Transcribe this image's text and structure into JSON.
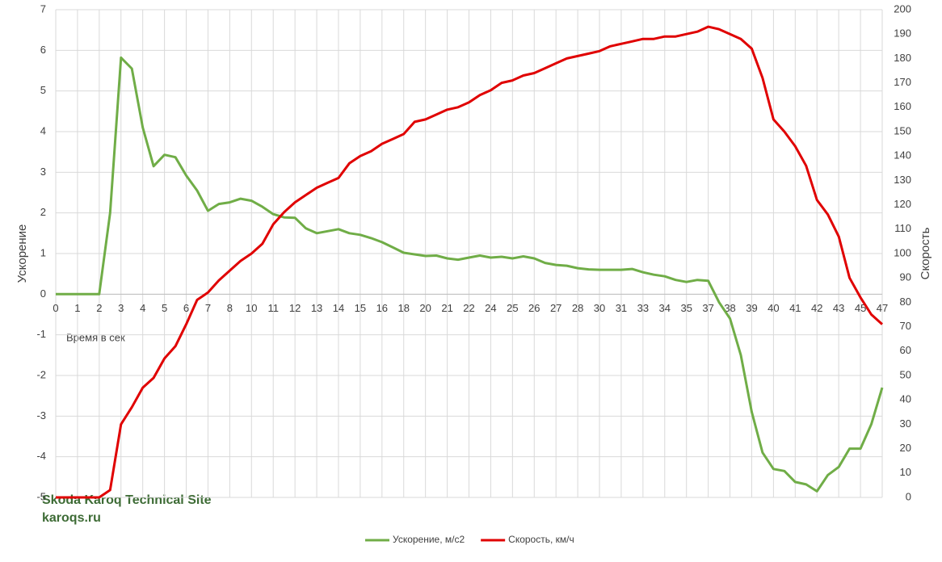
{
  "chart_data": {
    "type": "line",
    "xlabel": "Время в сек",
    "ylabel": "Ускорение",
    "y2label": "Скорость",
    "watermark": [
      "Skoda Karoq Technical Site",
      "karoqs.ru"
    ],
    "categories": [
      "0",
      null,
      "1",
      null,
      "2",
      null,
      "3",
      null,
      "4",
      null,
      "5",
      null,
      "6",
      null,
      "7",
      null,
      "8",
      null,
      "10",
      null,
      "11",
      null,
      "12",
      null,
      "13",
      null,
      "14",
      null,
      "15",
      null,
      "16",
      null,
      "18",
      null,
      "20",
      null,
      "21",
      null,
      "22",
      null,
      "24",
      null,
      "25",
      null,
      "26",
      null,
      "27",
      null,
      "28",
      null,
      "30",
      null,
      "31",
      null,
      "33",
      null,
      "34",
      null,
      "35",
      null,
      "37",
      null,
      "38",
      null,
      "39",
      null,
      "40",
      null,
      "41",
      null,
      "42",
      null,
      "43",
      null,
      "45",
      null,
      "47"
    ],
    "series": [
      {
        "name": "Ускорение, м/с2",
        "color": "#70ad47",
        "values": [
          0,
          0,
          0,
          0,
          0,
          2.0,
          5.82,
          5.55,
          4.1,
          3.15,
          3.43,
          3.37,
          2.92,
          2.55,
          2.05,
          2.22,
          2.26,
          2.35,
          2.3,
          2.15,
          1.97,
          1.89,
          1.88,
          1.62,
          1.5,
          1.55,
          1.6,
          1.5,
          1.46,
          1.38,
          1.28,
          1.15,
          1.02,
          0.98,
          0.94,
          0.95,
          0.88,
          0.85,
          0.9,
          0.95,
          0.9,
          0.92,
          0.88,
          0.93,
          0.88,
          0.77,
          0.72,
          0.7,
          0.64,
          0.61,
          0.6,
          0.6,
          0.6,
          0.62,
          0.54,
          0.48,
          0.44,
          0.35,
          0.3,
          0.35,
          0.33,
          -0.2,
          -0.6,
          -1.5,
          -2.9,
          -3.9,
          -4.3,
          -4.35,
          -4.62,
          -4.68,
          -4.85,
          -4.45,
          -4.25,
          -3.8,
          -3.8,
          -3.2,
          -2.3
        ]
      },
      {
        "name": "Скорость, км/ч",
        "color": "#e00000",
        "axis": "y2",
        "values": [
          0,
          0,
          0,
          0,
          0,
          3,
          30,
          37,
          45,
          49,
          57,
          62,
          71,
          81,
          84,
          89,
          93,
          97,
          100,
          104,
          112,
          117,
          121,
          124,
          127,
          129,
          131,
          137,
          140,
          142,
          145,
          147,
          149,
          154,
          155,
          157,
          159,
          160,
          162,
          165,
          167,
          170,
          171,
          173,
          174,
          176,
          178,
          180,
          181,
          182,
          183,
          185,
          186,
          187,
          188,
          188,
          189,
          189,
          190,
          191,
          193,
          192,
          190,
          188,
          184,
          172,
          155,
          150,
          144,
          136,
          122,
          116,
          107,
          90,
          82,
          75,
          71
        ]
      }
    ],
    "ylim": [
      -5,
      7
    ],
    "yticks": [
      -5,
      -4,
      -3,
      -2,
      -1,
      0,
      1,
      2,
      3,
      4,
      5,
      6,
      7
    ],
    "y2lim": [
      0,
      200
    ],
    "y2ticks": [
      0,
      10,
      20,
      30,
      40,
      50,
      60,
      70,
      80,
      90,
      100,
      110,
      120,
      130,
      140,
      150,
      160,
      170,
      180,
      190,
      200
    ],
    "grid": true,
    "legend": "bottom"
  }
}
